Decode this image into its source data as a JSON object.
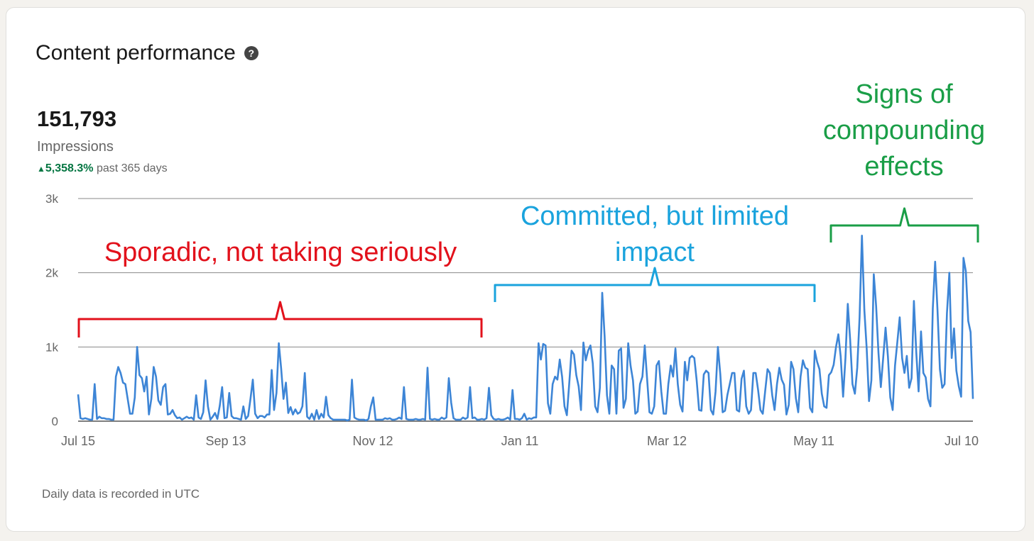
{
  "card": {
    "title": "Content performance",
    "help_glyph": "?",
    "metric_value": "151,793",
    "metric_label": "Impressions",
    "change_percent": "5,358.3%",
    "change_period": "past 365 days",
    "change_direction": "up",
    "footnote": "Daily data is recorded in UTC"
  },
  "colors": {
    "line": "#3d85d6",
    "positive": "#057642",
    "annotation_red": "#e2111b",
    "annotation_blue": "#1aa3dd",
    "annotation_green": "#1a9e47"
  },
  "chart_data": {
    "type": "line",
    "ylim": [
      0,
      3000
    ],
    "ytick_labels": [
      "0",
      "1k",
      "2k",
      "3k"
    ],
    "xtick_labels": [
      "Jul 15",
      "Sep 13",
      "Nov 12",
      "Jan 11",
      "Mar 12",
      "May 11",
      "Jul 10"
    ],
    "grid": true,
    "series": [
      {
        "values": [
          360,
          40,
          30,
          40,
          30,
          20,
          20,
          500,
          30,
          60,
          40,
          40,
          30,
          30,
          20,
          20,
          600,
          730,
          650,
          520,
          500,
          300,
          100,
          100,
          320,
          1000,
          620,
          580,
          400,
          600,
          90,
          300,
          730,
          600,
          280,
          220,
          460,
          500,
          90,
          100,
          150,
          80,
          40,
          50,
          20,
          40,
          60,
          40,
          50,
          20,
          350,
          50,
          30,
          120,
          550,
          200,
          20,
          60,
          110,
          30,
          210,
          460,
          40,
          50,
          380,
          70,
          40,
          40,
          30,
          20,
          200,
          30,
          70,
          300,
          560,
          100,
          40,
          70,
          70,
          50,
          90,
          90,
          690,
          150,
          380,
          1050,
          710,
          300,
          520,
          110,
          190,
          90,
          160,
          100,
          120,
          200,
          650,
          60,
          30,
          100,
          20,
          150,
          30,
          100,
          50,
          330,
          80,
          40,
          20,
          20,
          20,
          20,
          20,
          20,
          10,
          20,
          560,
          50,
          30,
          20,
          20,
          20,
          10,
          30,
          200,
          320,
          20,
          20,
          20,
          20,
          40,
          30,
          40,
          20,
          20,
          30,
          50,
          30,
          460,
          30,
          20,
          20,
          20,
          30,
          20,
          20,
          30,
          20,
          720,
          30,
          20,
          30,
          20,
          20,
          50,
          30,
          50,
          580,
          250,
          40,
          20,
          20,
          20,
          50,
          30,
          50,
          460,
          40,
          50,
          20,
          20,
          30,
          20,
          40,
          450,
          80,
          30,
          20,
          30,
          20,
          20,
          30,
          50,
          20,
          420,
          30,
          30,
          20,
          40,
          100,
          20,
          40,
          30,
          50,
          50,
          1050,
          830,
          1040,
          1020,
          240,
          100,
          500,
          600,
          560,
          830,
          600,
          200,
          80,
          500,
          950,
          900,
          620,
          470,
          150,
          1060,
          820,
          950,
          1020,
          780,
          200,
          120,
          450,
          1730,
          1140,
          350,
          100,
          750,
          700,
          100,
          950,
          980,
          180,
          300,
          1050,
          750,
          550,
          100,
          130,
          500,
          600,
          1020,
          570,
          120,
          100,
          200,
          750,
          810,
          400,
          100,
          100,
          500,
          750,
          600,
          980,
          500,
          220,
          130,
          800,
          550,
          850,
          880,
          850,
          550,
          150,
          140,
          630,
          680,
          650,
          150,
          90,
          400,
          1000,
          630,
          120,
          140,
          350,
          500,
          650,
          650,
          150,
          130,
          570,
          680,
          200,
          100,
          150,
          650,
          650,
          420,
          150,
          100,
          400,
          700,
          650,
          350,
          150,
          500,
          720,
          560,
          490,
          90,
          220,
          800,
          700,
          310,
          120,
          600,
          820,
          720,
          700,
          180,
          120,
          950,
          800,
          700,
          370,
          200,
          180,
          620,
          660,
          760,
          1000,
          1170,
          870,
          330,
          850,
          1580,
          1100,
          500,
          370,
          720,
          1400,
          2500,
          1500,
          980,
          270,
          550,
          1980,
          1550,
          920,
          460,
          860,
          1260,
          870,
          320,
          150,
          750,
          1070,
          1400,
          850,
          650,
          880,
          450,
          580,
          1620,
          930,
          400,
          1210,
          650,
          590,
          300,
          200,
          1520,
          2150,
          1500,
          700,
          450,
          500,
          1450,
          2000,
          850,
          1250,
          680,
          470,
          330,
          2200,
          2020,
          1350,
          1200,
          300
        ]
      }
    ],
    "annotations": [
      {
        "text": "Sporadic, not taking seriously",
        "color_key": "annotation_red",
        "span": [
          "Jul 15",
          "Jan 11"
        ]
      },
      {
        "text": "Committed, but limited impact",
        "color_key": "annotation_blue",
        "span": [
          "Jan 11",
          "May 11"
        ]
      },
      {
        "text": "Signs of compounding effects",
        "color_key": "annotation_green",
        "span": [
          "May 11",
          "Jul 10"
        ]
      }
    ]
  }
}
